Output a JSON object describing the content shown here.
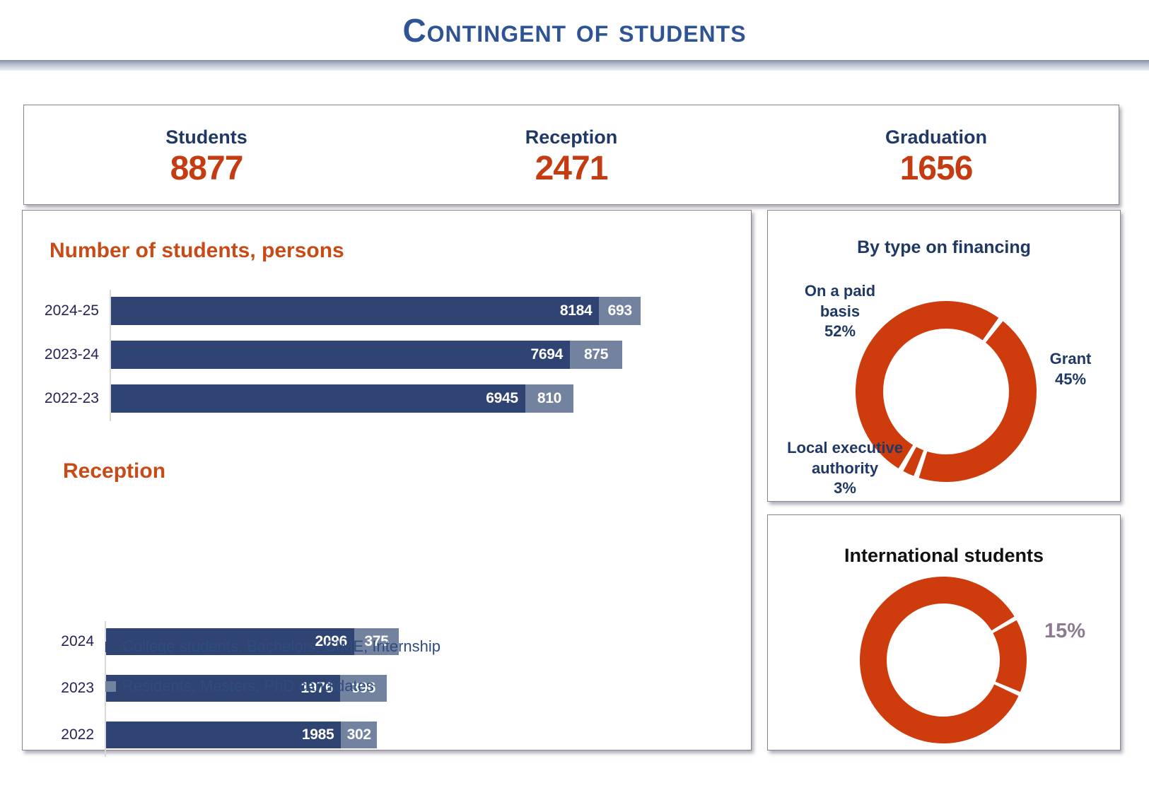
{
  "header": {
    "title": "Contingent of students"
  },
  "stats": {
    "items": [
      {
        "label": "Students",
        "value": "8877"
      },
      {
        "label": "Reception",
        "value": "2471"
      },
      {
        "label": "Graduation",
        "value": "1656"
      }
    ]
  },
  "legend": {
    "items": [
      {
        "label": "College students, Bachelors, CIME, Internship",
        "color": "#2F4473"
      },
      {
        "label": "Residents, Masters, PhD candidates",
        "color": "#73829F"
      }
    ]
  },
  "colors": {
    "main_title": "#2F5496",
    "navy": "#1F3864",
    "category_label": "#262358",
    "legend_text": "#2E4C7E",
    "stat_number_orange": "#C43C11",
    "chart_title_orange": "#C84B17",
    "donut_orange": "#CE3B0D",
    "bar_primary": "#2F4473",
    "bar_secondary": "#73829F",
    "intl_pct_label": "#8C7B90"
  },
  "chart_data": [
    {
      "id": "students-chart",
      "type": "bar",
      "orientation": "horizontal",
      "stacked": true,
      "title": "Number of students, persons",
      "categories": [
        "2024-25",
        "2023-24",
        "2022-23"
      ],
      "series": [
        {
          "name": "College students, Bachelors, CIME, Internship",
          "values": [
            8184,
            7694,
            6945
          ]
        },
        {
          "name": "Residents, Masters, PhD candidates",
          "values": [
            693,
            875,
            810
          ]
        }
      ],
      "totals": [
        8877,
        8569,
        7755
      ],
      "xlim": [
        0,
        8877
      ],
      "value_labels": true,
      "grid": false,
      "legend_position": "bottom"
    },
    {
      "id": "reception-chart",
      "type": "bar",
      "orientation": "horizontal",
      "stacked": true,
      "title": "Reception",
      "categories": [
        "2024",
        "2023",
        "2022"
      ],
      "series": [
        {
          "name": "College students, Bachelors, CIME, Internship",
          "values": [
            2096,
            1976,
            1985
          ]
        },
        {
          "name": "Residents, Masters, PhD candidates",
          "values": [
            375,
            396,
            302
          ]
        }
      ],
      "totals": [
        2471,
        2372,
        2287
      ],
      "xlim": [
        0,
        2471
      ],
      "value_labels": true,
      "grid": false,
      "legend_position": "bottom"
    },
    {
      "id": "financing-donut",
      "type": "pie",
      "subtype": "donut",
      "title": "By type on financing",
      "start_angle_deg": 210,
      "slices": [
        {
          "label": "On a paid basis",
          "pct": 52,
          "pct_label": "52%"
        },
        {
          "label": "Grant",
          "pct": 45,
          "pct_label": "45%"
        },
        {
          "label": "Local executive authority",
          "pct": 3,
          "pct_label": "3%"
        }
      ]
    },
    {
      "id": "international-donut",
      "type": "pie",
      "subtype": "donut",
      "title": "International students",
      "start_angle_deg": 60,
      "slices": [
        {
          "label": "International",
          "pct": 15,
          "pct_label": "15%"
        },
        {
          "label": "",
          "pct": 85,
          "pct_label": ""
        }
      ]
    }
  ]
}
